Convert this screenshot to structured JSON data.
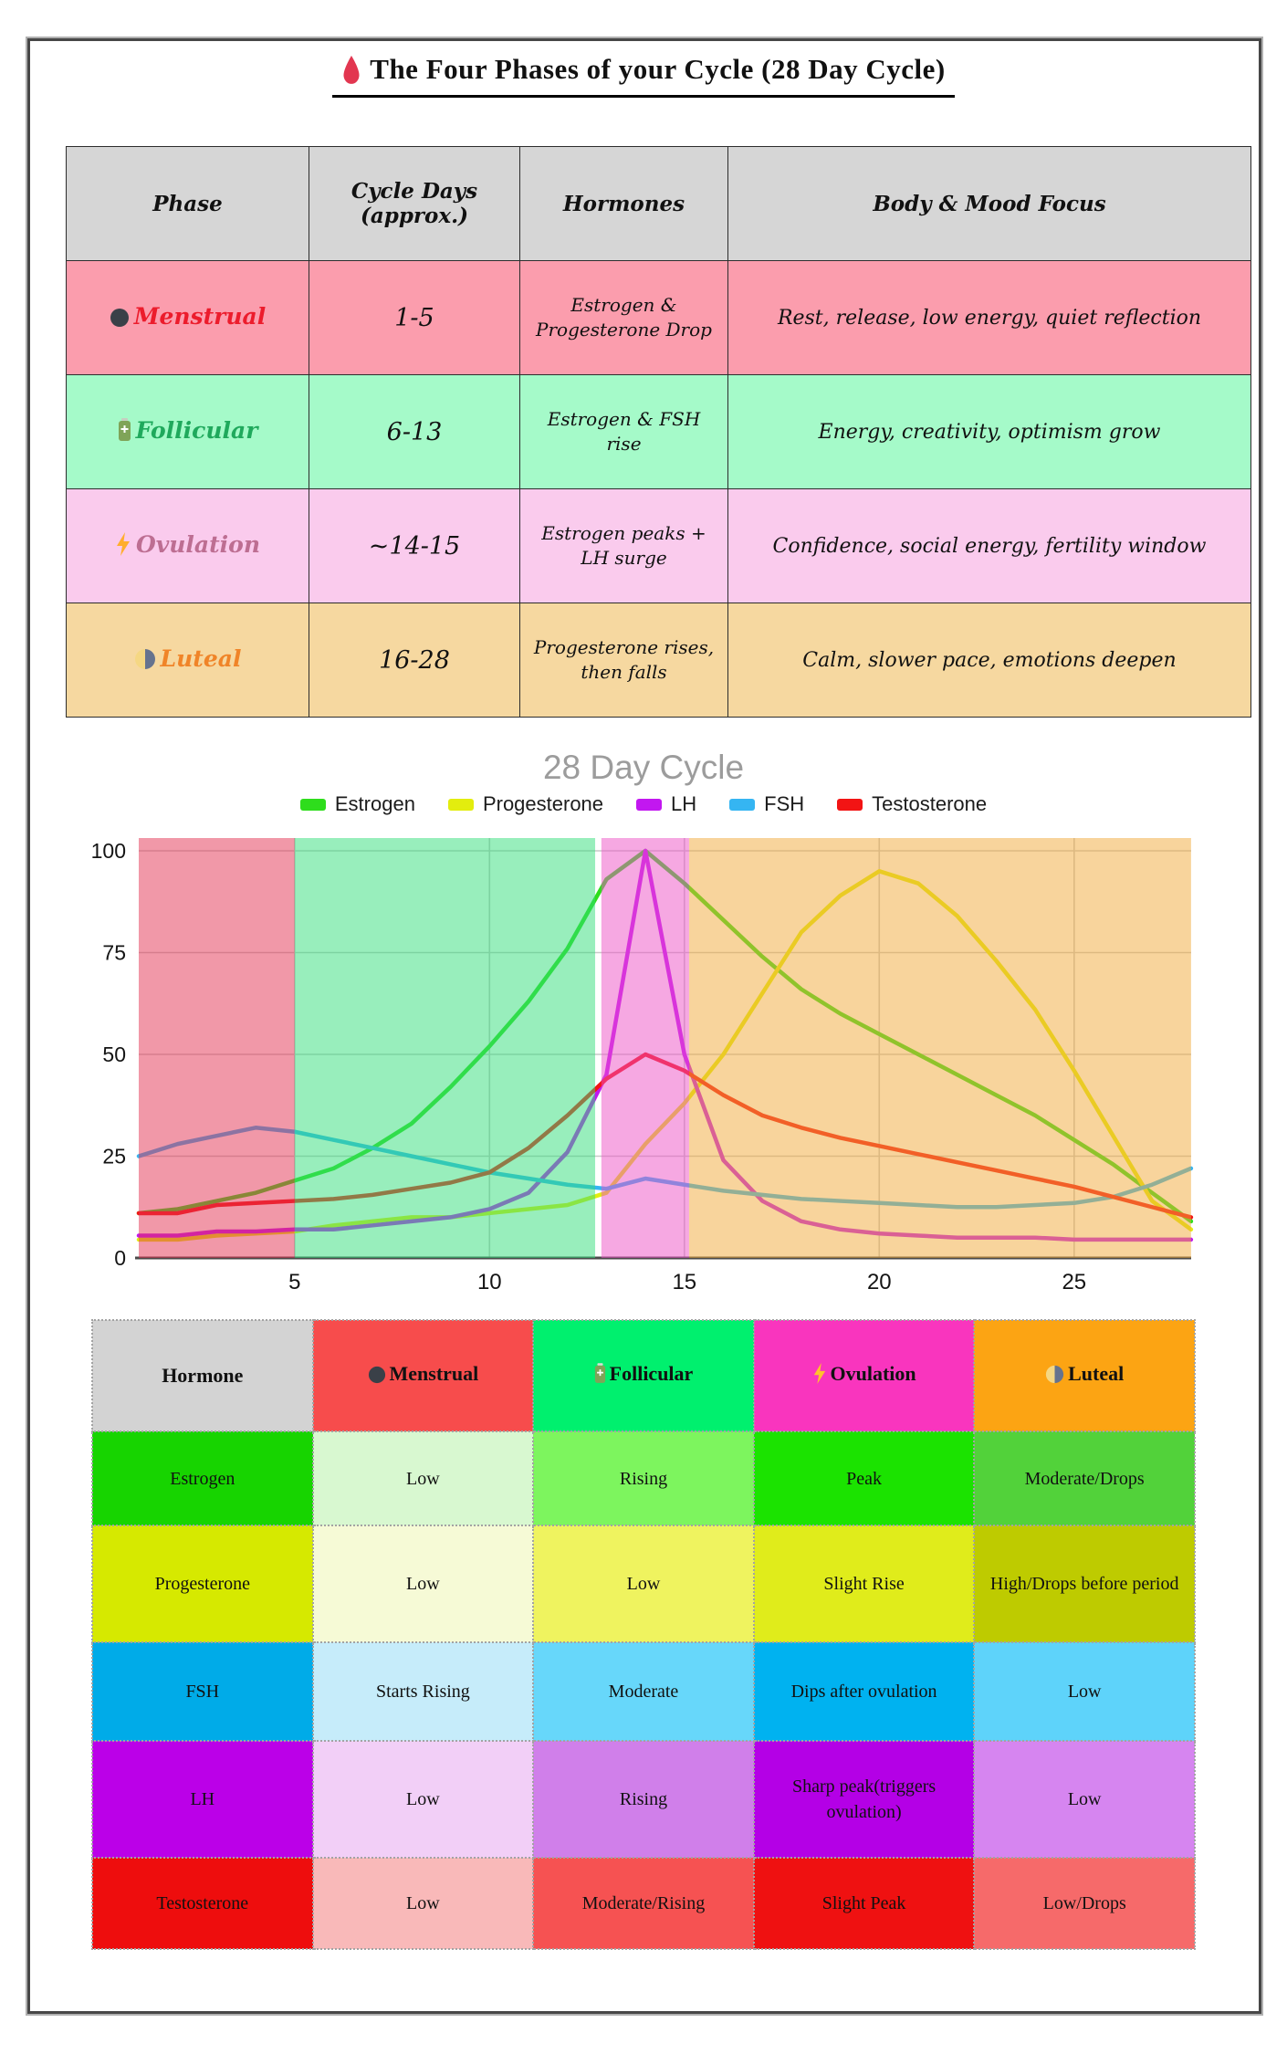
{
  "page": {
    "title": "The Four Phases of your Cycle (28 Day Cycle)",
    "title_icon": "blood-drop"
  },
  "phase_table": {
    "headers": [
      "Phase",
      "Cycle Days (approx.)",
      "Hormones",
      "Body & Mood Focus"
    ],
    "rows": [
      {
        "icon": "black-circle",
        "phase": "Menstrual",
        "phase_color": "#EC1C2C",
        "days": "1-5",
        "hormones": "Estrogen & Progesterone Drop",
        "focus": "Rest, release, low energy, quiet reflection",
        "bg": "#FB9DAD"
      },
      {
        "icon": "battery",
        "phase": "Follicular",
        "phase_color": "#1FA95C",
        "days": "6-13",
        "hormones": "Estrogen & FSH rise",
        "focus": "Energy, creativity, optimism grow",
        "bg": "#A5FAC9"
      },
      {
        "icon": "lightning",
        "phase": "Ovulation",
        "phase_color": "#BD6E92",
        "days": "~14-15",
        "hormones": "Estrogen peaks + LH surge",
        "focus": "Confidence, social energy, fertility window",
        "bg": "#FACBED"
      },
      {
        "icon": "moon",
        "phase": "Luteal",
        "phase_color": "#F08428",
        "days": "16-28",
        "hormones": "Progesterone rises, then falls",
        "focus": "Calm, slower pace, emotions deepen",
        "bg": "#F6D8A0"
      }
    ]
  },
  "chart_data": {
    "type": "line",
    "title": "28 Day Cycle",
    "xlabel": "",
    "ylabel": "",
    "x_range": [
      1,
      28
    ],
    "ylim": [
      0,
      100
    ],
    "xticks": [
      5,
      10,
      15,
      20,
      25
    ],
    "yticks": [
      0,
      25,
      50,
      75,
      100
    ],
    "grid": true,
    "legend_position": "top",
    "x": [
      1,
      2,
      3,
      4,
      5,
      6,
      7,
      8,
      9,
      10,
      11,
      12,
      13,
      14,
      15,
      16,
      17,
      18,
      19,
      20,
      21,
      22,
      23,
      24,
      25,
      26,
      27,
      28
    ],
    "series": [
      {
        "name": "Estrogen",
        "color": "#2EDD1C",
        "values": [
          11,
          12,
          14,
          16,
          19,
          22,
          27,
          33,
          42,
          52,
          63,
          76,
          93,
          100,
          92,
          83,
          74,
          66,
          60,
          55,
          50,
          45,
          40,
          35,
          29,
          23,
          16,
          9
        ]
      },
      {
        "name": "Progesterone",
        "color": "#E3ED0E",
        "values": [
          4.5,
          4.5,
          5.5,
          6,
          6.5,
          8,
          9,
          10,
          10,
          11,
          12,
          13,
          16,
          28,
          38,
          50,
          65,
          80,
          89,
          95,
          92,
          84,
          73,
          61,
          46,
          30,
          14,
          7
        ]
      },
      {
        "name": "LH",
        "color": "#C217F0",
        "values": [
          5.5,
          5.5,
          6.5,
          6.5,
          7,
          7,
          8,
          9,
          10,
          12,
          16,
          26,
          45,
          100,
          50,
          24,
          14,
          9,
          7,
          6,
          5.5,
          5,
          5,
          5,
          4.5,
          4.5,
          4.5,
          4.5
        ]
      },
      {
        "name": "FSH",
        "color": "#35B5F2",
        "values": [
          25,
          28,
          30,
          32,
          31,
          29,
          27,
          25,
          23,
          21,
          19.5,
          18,
          17,
          19.5,
          18,
          16.5,
          15.5,
          14.5,
          14,
          13.5,
          13,
          12.5,
          12.5,
          13,
          13.5,
          15,
          18,
          22
        ]
      },
      {
        "name": "Testosterone",
        "color": "#F21414",
        "values": [
          11,
          11,
          13,
          13.5,
          14,
          14.5,
          15.5,
          17,
          18.5,
          21,
          27,
          35,
          44,
          50,
          46,
          40,
          35,
          32,
          29.5,
          27.5,
          25.5,
          23.5,
          21.5,
          19.5,
          17.5,
          15,
          12.5,
          10
        ]
      }
    ],
    "phase_bands": [
      {
        "name": "menstrual",
        "from_day": 1,
        "to_day": 5,
        "color": "#E33151"
      },
      {
        "name": "follicular",
        "from_day": 5,
        "to_day": 12.71,
        "color": "#31DD79"
      },
      {
        "name": "ovulation",
        "from_day": 12.87,
        "to_day": 15.12,
        "color": "#ED51C5"
      },
      {
        "name": "luteal",
        "from_day": 15.12,
        "to_day": 28,
        "color": "#F1A939"
      }
    ],
    "band_opacity": 0.5
  },
  "hormone_table": {
    "col_headers": [
      {
        "label": "Hormone",
        "icon": "none",
        "bg": "#D3D3D3"
      },
      {
        "label": "Menstrual",
        "icon": "black-circle",
        "bg": "#F74C4C"
      },
      {
        "label": "Follicular",
        "icon": "battery",
        "bg": "#00F06E"
      },
      {
        "label": "Ovulation",
        "icon": "lightning",
        "bg": "#F935BE"
      },
      {
        "label": "Luteal",
        "icon": "moon",
        "bg": "#FCA413"
      }
    ],
    "rows": [
      {
        "hormone": "Estrogen",
        "bg": "#17D400",
        "cells": [
          {
            "text": "Low",
            "bg": "#D8F8D0"
          },
          {
            "text": "Rising",
            "bg": "#7DF55E"
          },
          {
            "text": "Peak",
            "bg": "#1BE300"
          },
          {
            "text": "Moderate/Drops",
            "bg": "#52D23A"
          }
        ]
      },
      {
        "hormone": "Progesterone",
        "bg": "#D6E900",
        "cells": [
          {
            "text": "Low",
            "bg": "#F6FAD6"
          },
          {
            "text": "Low",
            "bg": "#EFF35F"
          },
          {
            "text": "Slight Rise",
            "bg": "#E0EC1B"
          },
          {
            "text": "High/Drops before period",
            "bg": "#BECB00"
          }
        ]
      },
      {
        "hormone": "FSH",
        "bg": "#00ABE8",
        "cells": [
          {
            "text": "Starts Rising",
            "bg": "#C6ECFA"
          },
          {
            "text": "Moderate",
            "bg": "#67D7FA"
          },
          {
            "text": "Dips after ovulation",
            "bg": "#00B2F0"
          },
          {
            "text": "Low",
            "bg": "#5ED3FA"
          }
        ]
      },
      {
        "hormone": "LH",
        "bg": "#BB00E8",
        "cells": [
          {
            "text": "Low",
            "bg": "#F2CFF7"
          },
          {
            "text": "Rising",
            "bg": "#D07FEA"
          },
          {
            "text": "Sharp peak(triggers ovulation)",
            "bg": "#B400E6"
          },
          {
            "text": "Low",
            "bg": "#D685F0"
          }
        ]
      },
      {
        "hormone": "Testosterone",
        "bg": "#EE0D0D",
        "cells": [
          {
            "text": "Low",
            "bg": "#F9B9B9"
          },
          {
            "text": "Moderate/Rising",
            "bg": "#F65252"
          },
          {
            "text": "Slight Peak",
            "bg": "#EF1111"
          },
          {
            "text": "Low/Drops",
            "bg": "#F66A6A"
          }
        ]
      }
    ]
  }
}
